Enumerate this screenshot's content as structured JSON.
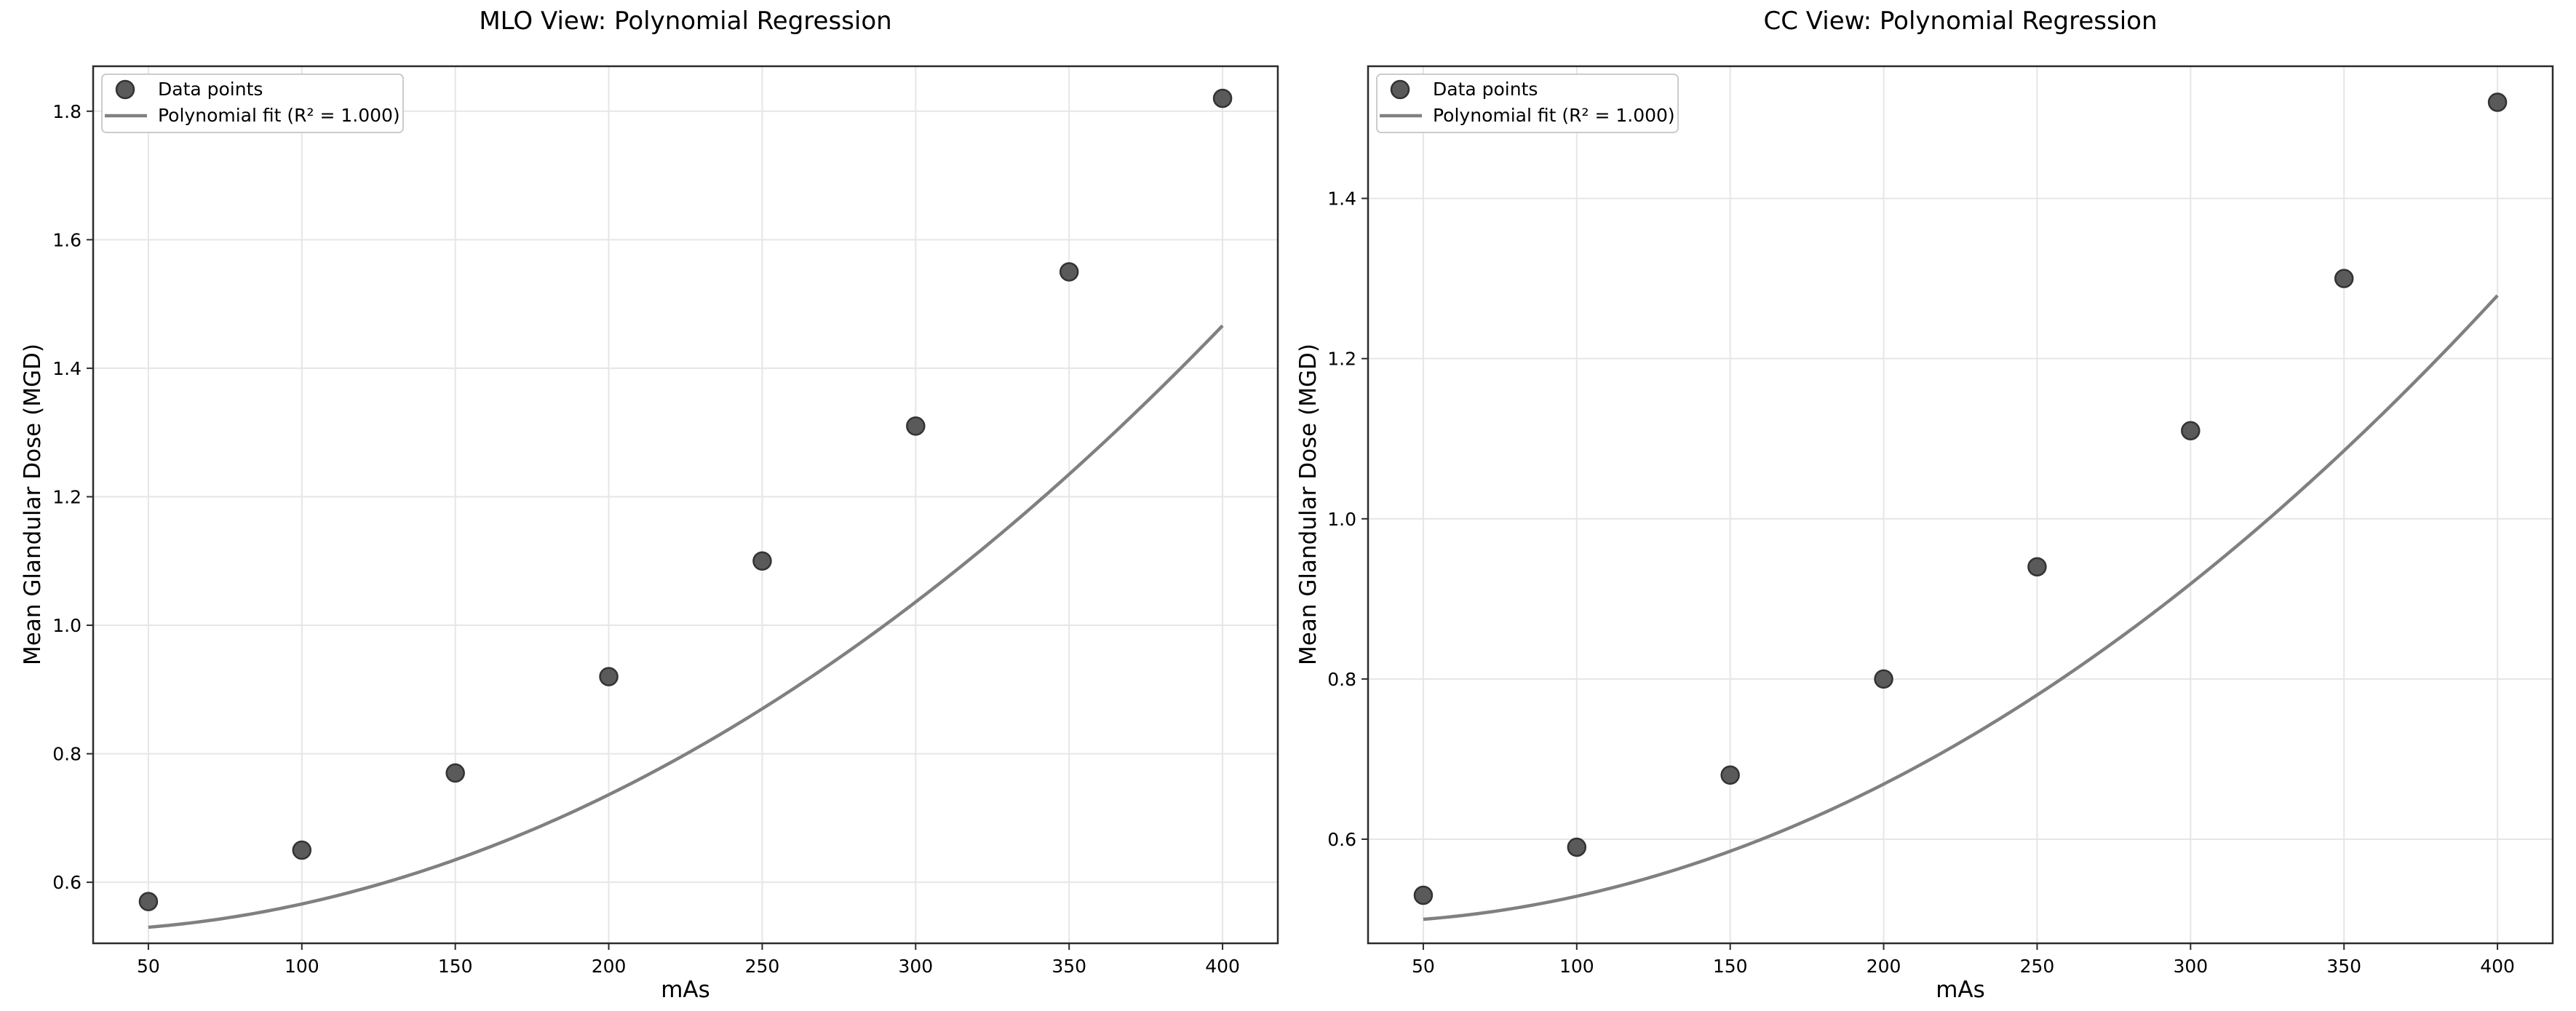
{
  "chart_data": [
    {
      "type": "scatter",
      "title": "MLO View: Polynomial Regression",
      "xlabel": "mAs",
      "ylabel": "Mean Glandular Dose (MGD)",
      "xlim": [
        32,
        418
      ],
      "ylim": [
        0.505,
        1.87
      ],
      "x_ticks": [
        50,
        100,
        150,
        200,
        250,
        300,
        350,
        400
      ],
      "y_ticks": [
        0.6,
        0.8,
        1.0,
        1.2,
        1.4,
        1.6,
        1.8
      ],
      "y_tick_decimals": 1,
      "grid": true,
      "legend_position": "upper-left",
      "series": [
        {
          "name": "Data points",
          "kind": "scatter",
          "x": [
            50,
            100,
            150,
            200,
            250,
            300,
            350,
            400
          ],
          "y": [
            0.57,
            0.65,
            0.77,
            0.92,
            1.1,
            1.31,
            1.55,
            1.82
          ]
        },
        {
          "name": "Polynomial fit (R² = 1.000)",
          "kind": "line",
          "coefficients": [
            0.53,
            0.0004,
            6.5e-06
          ],
          "domain": [
            50,
            400
          ]
        }
      ],
      "colors": {
        "points": "#5a5a5a",
        "fit": "#808080"
      }
    },
    {
      "type": "scatter",
      "title": "CC View: Polynomial Regression",
      "xlabel": "mAs",
      "ylabel": "Mean Glandular Dose (MGD)",
      "xlim": [
        32,
        418
      ],
      "ylim": [
        0.47,
        1.565
      ],
      "x_ticks": [
        50,
        100,
        150,
        200,
        250,
        300,
        350,
        400
      ],
      "y_ticks": [
        0.6,
        0.8,
        1.0,
        1.2,
        1.4
      ],
      "y_tick_decimals": 1,
      "grid": true,
      "legend_position": "upper-left",
      "series": [
        {
          "name": "Data points",
          "kind": "scatter",
          "x": [
            50,
            100,
            150,
            200,
            250,
            300,
            350,
            400
          ],
          "y": [
            0.53,
            0.59,
            0.68,
            0.8,
            0.94,
            1.11,
            1.3,
            1.52
          ]
        },
        {
          "name": "Polynomial fit (R² = 1.000)",
          "kind": "line",
          "coefficients": [
            0.5,
            0.0003,
            5.5e-06
          ],
          "domain": [
            50,
            400
          ]
        }
      ],
      "colors": {
        "points": "#5a5a5a",
        "fit": "#808080"
      }
    }
  ]
}
